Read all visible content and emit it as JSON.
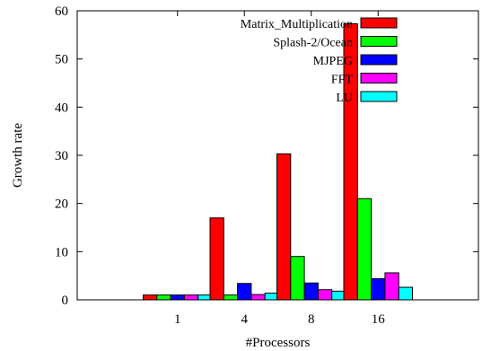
{
  "chart_data": {
    "type": "bar",
    "title": "",
    "xlabel": "#Processors",
    "ylabel": "Growth rate",
    "categories": [
      "1",
      "4",
      "8",
      "16"
    ],
    "ylim": [
      0,
      60
    ],
    "yticks": [
      0,
      10,
      20,
      30,
      40,
      50,
      60
    ],
    "grid": false,
    "legend_position": "top-right",
    "series": [
      {
        "name": "Matrix_Multiplication",
        "color": "#ff0000",
        "values": [
          1.0,
          17.0,
          30.3,
          57.3
        ]
      },
      {
        "name": "Splash-2/Ocean",
        "color": "#00ff00",
        "values": [
          1.0,
          1.0,
          9.0,
          21.0
        ]
      },
      {
        "name": "MJPEG",
        "color": "#0000ff",
        "values": [
          1.0,
          3.4,
          3.5,
          4.4
        ]
      },
      {
        "name": "FFT",
        "color": "#ff00ff",
        "values": [
          1.0,
          1.1,
          2.1,
          5.6
        ]
      },
      {
        "name": "LU",
        "color": "#00ffff",
        "values": [
          1.0,
          1.4,
          1.8,
          2.6
        ]
      }
    ]
  }
}
